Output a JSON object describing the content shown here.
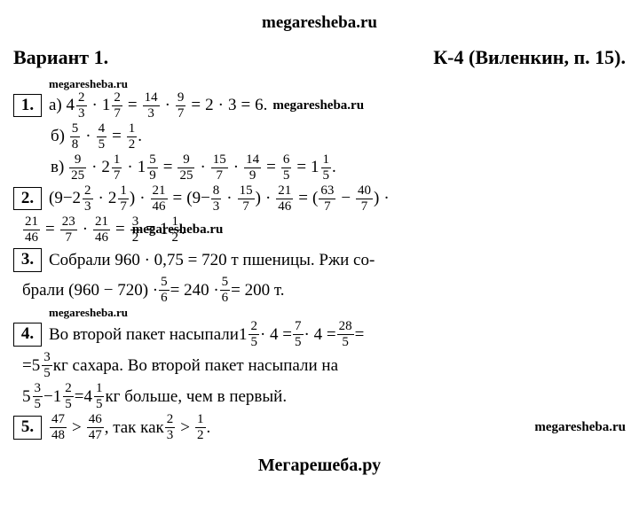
{
  "watermark_top": "megaresheba.ru",
  "watermark_inline": "megaresheba.ru",
  "footer": "Мегарешеба.ру",
  "header": {
    "left": "Вариант 1.",
    "right": "К-4 (Виленкин, п. 15)."
  },
  "problems": {
    "p1": {
      "num": "1.",
      "a_label": "а)",
      "a": {
        "t1_w": "4",
        "t1_n": "2",
        "t1_d": "3",
        "t2_w": "1",
        "t2_n": "2",
        "t2_d": "7",
        "r1_n": "14",
        "r1_d": "3",
        "r2_n": "9",
        "r2_d": "7",
        "s1": "2",
        "s2": "3",
        "res": "6."
      },
      "b_label": "б)",
      "b": {
        "t1_n": "5",
        "t1_d": "8",
        "t2_n": "4",
        "t2_d": "5",
        "r_n": "1",
        "r_d": "2"
      },
      "c_label": "в)",
      "c": {
        "t1_n": "9",
        "t1_d": "25",
        "t2_w": "2",
        "t2_n": "1",
        "t2_d": "7",
        "t3_w": "1",
        "t3_n": "5",
        "t3_d": "9",
        "r1_n": "9",
        "r1_d": "25",
        "r2_n": "15",
        "r2_d": "7",
        "r3_n": "14",
        "r3_d": "9",
        "r4_n": "6",
        "r4_d": "5",
        "r5_w": "1",
        "r5_n": "1",
        "r5_d": "5"
      }
    },
    "p2": {
      "num": "2.",
      "l1": {
        "a": "9",
        "b_w": "2",
        "b_n": "2",
        "b_d": "3",
        "c_w": "2",
        "c_n": "1",
        "c_d": "7",
        "d_n": "21",
        "d_d": "46",
        "e": "9",
        "f_n": "8",
        "f_d": "3",
        "g_n": "15",
        "g_d": "7",
        "h_n": "21",
        "h_d": "46",
        "i_n": "63",
        "i_d": "7",
        "j_n": "40",
        "j_d": "7"
      },
      "l2": {
        "a_n": "21",
        "a_d": "46",
        "b_n": "23",
        "b_d": "7",
        "c_n": "21",
        "c_d": "46",
        "d_n": "3",
        "d_d": "2",
        "e_w": "1",
        "e_n": "1",
        "e_d": "2"
      }
    },
    "p3": {
      "num": "3.",
      "t1": "Собрали 960 · 0,75 = 720 т пшеницы. Ржи со-",
      "t2a": "брали (960 − 720) · ",
      "f1_n": "5",
      "f1_d": "6",
      "t2b": " = 240 · ",
      "f2_n": "5",
      "f2_d": "6",
      "t2c": " = 200 т."
    },
    "p4": {
      "num": "4.",
      "t1": "Во второй пакет насыпали ",
      "m1_w": "1",
      "m1_n": "2",
      "m1_d": "5",
      "t2": " · 4 = ",
      "f1_n": "7",
      "f1_d": "5",
      "t3": " · 4 = ",
      "f2_n": "28",
      "f2_d": "5",
      "t4": " =",
      "t5": "= ",
      "m2_w": "5",
      "m2_n": "3",
      "m2_d": "5",
      "t6": " кг сахара. Во второй пакет насыпали на",
      "m3_w": "5",
      "m3_n": "3",
      "m3_d": "5",
      "t7": " − ",
      "m4_w": "1",
      "m4_n": "2",
      "m4_d": "5",
      "t8": " = ",
      "m5_w": "4",
      "m5_n": "1",
      "m5_d": "5",
      "t9": " кг больше, чем в первый."
    },
    "p5": {
      "num": "5.",
      "f1_n": "47",
      "f1_d": "48",
      "f2_n": "46",
      "f2_d": "47",
      "t1": ", так как ",
      "f3_n": "2",
      "f3_d": "3",
      "f4_n": "1",
      "f4_d": "2"
    }
  }
}
